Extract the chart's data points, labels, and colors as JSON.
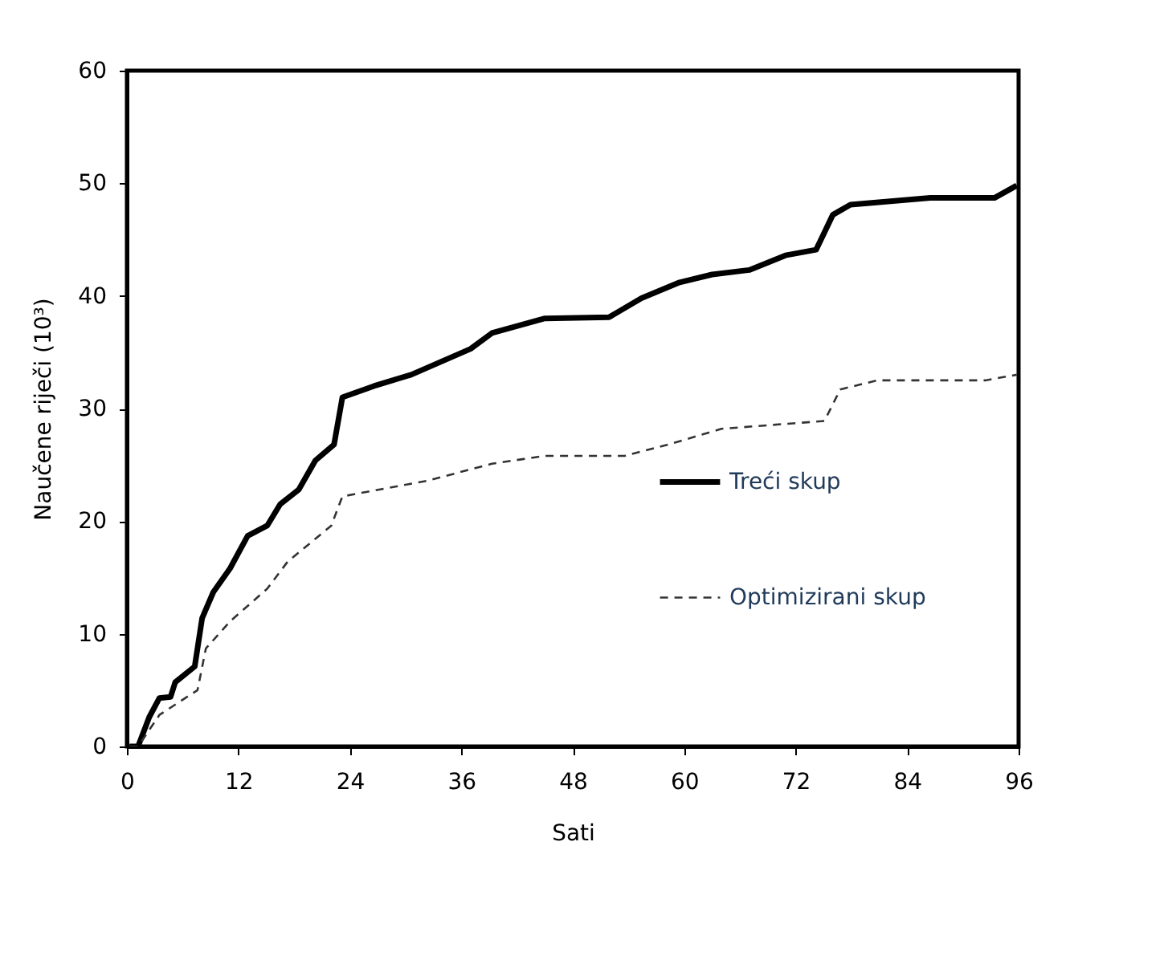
{
  "chart_data": {
    "type": "line",
    "xlabel": "Sati",
    "ylabel": "Naučene riječi (10³)",
    "xlim": [
      0,
      96
    ],
    "ylim": [
      0,
      60
    ],
    "xticks": [
      0,
      12,
      24,
      36,
      48,
      60,
      72,
      84,
      96
    ],
    "yticks": [
      0,
      10,
      20,
      30,
      40,
      50,
      60
    ],
    "grid": false,
    "legend": "right",
    "marker": "none",
    "series": [
      {
        "name": "Treći skup",
        "color": "#000000",
        "line_style": "solid",
        "x": [
          0.3,
          1.2,
          2.4,
          3.5,
          4.7,
          5.2,
          7.3,
          8.1,
          9.3,
          11.1,
          13.0,
          15.1,
          16.5,
          18.5,
          20.3,
          22.3,
          23.2,
          26.6,
          30.6,
          37.0,
          39.3,
          45.0,
          51.9,
          55.4,
          59.5,
          63.0,
          67.0,
          70.9,
          74.2,
          76.0,
          77.9,
          86.5,
          93.4,
          95.8
        ],
        "values": [
          0,
          0,
          2.6,
          4.3,
          4.4,
          5.7,
          7.1,
          11.4,
          13.7,
          15.8,
          18.7,
          19.6,
          21.5,
          22.8,
          25.4,
          26.8,
          31.0,
          32.0,
          33.0,
          35.3,
          36.7,
          38.0,
          38.1,
          39.8,
          41.2,
          41.9,
          42.3,
          43.6,
          44.1,
          47.2,
          48.1,
          48.7,
          48.7,
          49.8
        ]
      },
      {
        "name": "Optimizirani skup",
        "color": "#333333",
        "line_style": "dashed",
        "x": [
          0.3,
          1.2,
          3.5,
          7.6,
          8.5,
          11.1,
          15.1,
          17.3,
          22.0,
          23.2,
          32.4,
          39.3,
          45.0,
          53.6,
          58.3,
          64.0,
          75.1,
          76.8,
          80.8,
          92.4,
          95.8
        ],
        "values": [
          0,
          0,
          2.8,
          5.0,
          8.7,
          11.1,
          14.0,
          16.4,
          19.6,
          22.2,
          23.6,
          25.1,
          25.8,
          25.8,
          26.8,
          28.2,
          28.9,
          31.7,
          32.5,
          32.5,
          33.0
        ]
      }
    ]
  }
}
